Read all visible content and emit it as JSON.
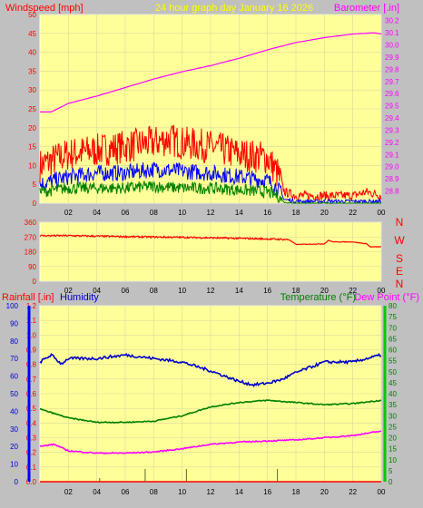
{
  "header": {
    "left_label": "Windspeed [mph]",
    "center_label": "24 hour graph day   January 16 2026",
    "right_label": "Barometer [.in]"
  },
  "colors": {
    "background": "#c0c0c0",
    "plot_bg": "#ffff99",
    "frame_line": "#ffffff",
    "grid": "#d8d8a0",
    "gust": "#ff0000",
    "wind": "#0000ff",
    "wind_low": "#008000",
    "barometer": "#ff00ff",
    "direction": "#ff0000",
    "rainfall": "#ff0000",
    "humidity": "#0000cc",
    "temperature": "#008000",
    "dewpoint": "#ff00ff",
    "header_left": "#ff0000",
    "header_center": "#ffff00",
    "header_right": "#ff00ff",
    "axis_text": "#000000"
  },
  "x_ticks": [
    "02",
    "04",
    "06",
    "08",
    "10",
    "12",
    "14",
    "16",
    "18",
    "20",
    "22",
    "00"
  ],
  "compass": [
    "N",
    "W",
    "S",
    "E",
    "N"
  ],
  "bottom_labels": {
    "rainfall": "Rainfall [.in]",
    "humidity": "Humidity",
    "temperature": "Temperature (°F)",
    "dewpoint": "Dew Point (°F)"
  },
  "chart_data": [
    {
      "type": "line",
      "title": "24 hour graph day   January 16 2026",
      "xlabel": "",
      "ylabel": "Windspeed [mph]",
      "ylim": [
        0,
        50
      ],
      "y_ticks": [
        0,
        5,
        10,
        15,
        20,
        25,
        30,
        35,
        40,
        45,
        50
      ],
      "y2label": "Barometer [.in]",
      "y2lim": [
        28.7,
        30.25
      ],
      "y2_ticks": [
        28.8,
        28.9,
        29.0,
        29.1,
        29.2,
        29.3,
        29.4,
        29.5,
        29.6,
        29.7,
        29.8,
        29.9,
        30.0,
        30.1,
        30.2
      ],
      "grid": true,
      "series": [
        {
          "key": "gust",
          "axis": "left",
          "x": [
            0,
            2,
            4,
            6,
            8,
            9,
            10,
            12,
            14,
            16,
            16.7,
            17.2,
            18,
            20,
            22,
            23,
            24
          ],
          "values": [
            10,
            13,
            14,
            15,
            16,
            17,
            16,
            15,
            13,
            12,
            8,
            3,
            2,
            2,
            2,
            3,
            2
          ]
        },
        {
          "key": "wind",
          "axis": "left",
          "x": [
            0,
            2,
            4,
            6,
            8,
            10,
            12,
            14,
            16,
            16.7,
            17.2,
            18,
            20,
            22,
            24
          ],
          "values": [
            5,
            7,
            8,
            8,
            9,
            8.5,
            8,
            7,
            6,
            4,
            1,
            0.5,
            0.5,
            0.5,
            0.5
          ]
        },
        {
          "key": "wind_low",
          "axis": "left",
          "x": [
            0,
            2,
            4,
            6,
            8,
            10,
            12,
            14,
            16,
            16.7,
            17.2,
            18,
            24
          ],
          "values": [
            3,
            4,
            4,
            4,
            4.5,
            4,
            4,
            3.5,
            3,
            2,
            0.2,
            0,
            0
          ]
        },
        {
          "key": "barometer",
          "axis": "right",
          "x": [
            0,
            0.8,
            2,
            4,
            6,
            8,
            10,
            12,
            14,
            16,
            18,
            20,
            22,
            23.5,
            24
          ],
          "values": [
            29.45,
            29.45,
            29.52,
            29.58,
            29.65,
            29.72,
            29.78,
            29.83,
            29.89,
            29.96,
            30.02,
            30.06,
            30.09,
            30.1,
            30.09
          ]
        }
      ]
    },
    {
      "type": "line",
      "title": "",
      "ylabel": "",
      "ylim": [
        0,
        360
      ],
      "y_ticks": [
        0,
        90,
        180,
        270,
        360
      ],
      "grid": true,
      "series": [
        {
          "key": "direction",
          "axis": "left",
          "x": [
            0,
            2,
            4,
            6,
            8,
            10,
            12,
            14,
            16,
            17.5,
            18,
            18.2,
            20,
            20.3,
            20.6,
            22,
            23,
            23.2,
            24
          ],
          "values": [
            278,
            278,
            275,
            272,
            270,
            268,
            265,
            262,
            258,
            254,
            225,
            225,
            228,
            250,
            240,
            240,
            228,
            210,
            210
          ]
        }
      ]
    },
    {
      "type": "line",
      "title": "",
      "ylabel": "Rainfall [.in]",
      "ylim": [
        0,
        1.2
      ],
      "y_ticks": [
        0,
        0.1,
        0.2,
        0.3,
        0.4,
        0.5,
        0.6,
        0.7,
        0.8,
        0.9,
        1.0,
        1.1,
        1.2
      ],
      "y_ticks_hum": [
        0,
        10,
        20,
        30,
        40,
        50,
        60,
        70,
        80,
        90,
        100
      ],
      "y2label": "Temperature (°F)",
      "y2lim": [
        0,
        80
      ],
      "y2_ticks": [
        0,
        5,
        10,
        15,
        20,
        25,
        30,
        35,
        40,
        45,
        50,
        55,
        60,
        65,
        70,
        75,
        80
      ],
      "grid": true,
      "series": [
        {
          "key": "humidity",
          "axis": "humidity",
          "x": [
            0,
            0.8,
            1.5,
            2,
            4,
            6,
            8,
            10,
            12,
            14,
            15,
            16,
            17,
            18,
            20,
            22,
            23,
            24
          ],
          "values": [
            68,
            72,
            67,
            70,
            70,
            72,
            70,
            68,
            63,
            57,
            55,
            56,
            58,
            62,
            68,
            68,
            70,
            72
          ]
        },
        {
          "key": "temperature",
          "axis": "right",
          "x": [
            0,
            2,
            4,
            6,
            8,
            10,
            12,
            14,
            16,
            18,
            20,
            22,
            24
          ],
          "values": [
            33,
            29,
            27,
            27,
            27.5,
            30,
            34,
            36,
            37,
            36,
            35,
            35.5,
            37
          ]
        },
        {
          "key": "dewpoint",
          "axis": "right",
          "x": [
            0,
            1,
            2,
            4,
            6,
            8,
            10,
            12,
            14,
            16,
            18,
            20,
            22,
            24
          ],
          "values": [
            16,
            17,
            14,
            13,
            13,
            13.5,
            15,
            17,
            18,
            18.5,
            19,
            20,
            21,
            23
          ]
        },
        {
          "key": "rainfall",
          "axis": "left",
          "x": [
            0,
            24
          ],
          "values": [
            0,
            0
          ]
        }
      ]
    }
  ]
}
